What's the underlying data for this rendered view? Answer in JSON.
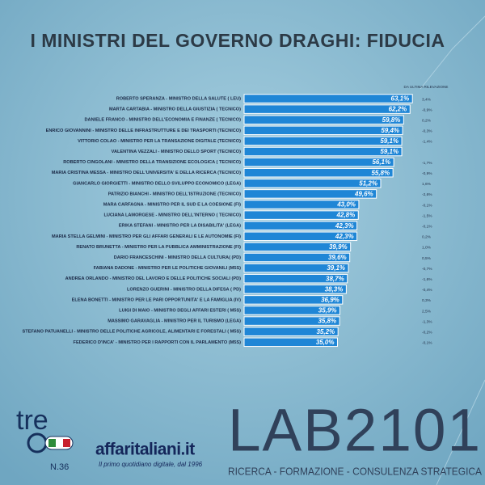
{
  "chart_data": {
    "type": "barh",
    "title": "I MINISTRI DEL GOVERNO DRAGHI: FIDUCIA",
    "change_header": "DA ULTIMA RILEVAZIONE",
    "color": "#1f86d6",
    "categories": [
      "ROBERTO SPERANZA - MINISTRO DELLA SALUTE ( LEU)",
      "MARTA CARTABIA - MINISTRO DELLA GIUSTIZIA ( TECNICO)",
      "DANIELE FRANCO - MINISTRO DELL'ECONOMIA E FINANZE ( TECNICO)",
      "ENRICO GIOVANNINI - MINISTRO DELLE INFRASTRUTTURE E DEI TRASPORTI (TECNICO)",
      "VITTORIO COLAO - MINISTRO PER LA TRANSAZIONE DIGITALE (TECNICO)",
      "VALENTINA VEZZALI - MINISTRO DELLO SPORT (TECNICO)",
      "ROBERTO CINGOLANI - MINISTRO DELLA TRANSIZIONE ECOLOGICA ( TECNICO)",
      "MARIA CRISTINA MESSA - MINISTRO DELL'UNIVERSITA' E DELLA RICERCA (TECNICO)",
      "GIANCARLO GIORGIETTI - MINISTRO DELLO SVILUPPO ECONOMICO (LEGA)",
      "PATRIZIO BIANCHI - MINISTRO DELL'ISTRUZIONE (TECNICO)",
      "MARA CARFAGNA - MINISTRO PER IL SUD E LA COESIONE (FI)",
      "LUCIANA LAMORGESE - MINISTRO DELL'INTERNO ( TECNICO)",
      "ERIKA STEFANI - MINISTRO PER LA DISABILITA' (LEGA)",
      "MARIA STELLA GELMINI - MINISTRO PER GLI AFFARI GENERALI E LE AUTONOMIE (FI)",
      "RENATO BRUNETTA - MINISTRO PER LA PUBBLICA AMMINISTRAZIONE (FI)",
      "DARIO FRANCESCHINI - MINISTRO DELLA CULTURA( (PD)",
      "FABIANA DADONE - MINISTRO PER LE POLITICHE GIOVANILI (M5S)",
      "ANDREA ORLANDO - MINISTRO DEL LAVORO E DELLE POLITICHE SOCIALI (PD)",
      "LORENZO GUERINI - MINISTRO DELLA DIFESA ( PD)",
      "ELENA BONETTI - MINISTRO PER LE PARI OPPORTUNITA' E LA FAMIGLIA (IV)",
      "LUIGI DI MAIO - MINISTRO DEGLI AFFARI ESTERI ( M5S)",
      "MASSIMO GARAVAGLIA - MINISTRO PER IL TURISMO (LEGA)",
      "STEFANO PATUANELLI - MINISTRO DELLE POLITICHE AGRICOLE, ALIMENTARI E FORESTALI ( M5S)",
      "FEDERICO D'INCA' - MINISTRO PER I RAPPORTI CON IL PARLAMENTO (M5S)"
    ],
    "values": [
      63.1,
      62.2,
      59.8,
      59.4,
      59.1,
      59.1,
      56.1,
      55.8,
      51.2,
      49.6,
      43.0,
      42.8,
      42.3,
      42.3,
      39.9,
      39.6,
      39.1,
      38.7,
      38.3,
      36.9,
      35.9,
      35.8,
      35.2,
      35.0
    ],
    "value_labels": [
      "63,1%",
      "62,2%",
      "59,8%",
      "59,4%",
      "59,1%",
      "59,1%",
      "56,1%",
      "55,8%",
      "51,2%",
      "49,6%",
      "43,0%",
      "42,8%",
      "42,3%",
      "42,3%",
      "39,9%",
      "39,6%",
      "39,1%",
      "38,7%",
      "38,3%",
      "36,9%",
      "35,9%",
      "35,8%",
      "35,2%",
      "35,0%"
    ],
    "changes": [
      "3,4%",
      "-0,9%",
      "0,2%",
      "-0,3%",
      "-1,4%",
      null,
      "-1,7%",
      "-0,9%",
      "1,6%",
      "-2,6%",
      "-0,1%",
      "-1,5%",
      "-0,1%",
      "0,2%",
      "1,0%",
      "0,5%",
      "-0,7%",
      "-1,6%",
      "-0,4%",
      "0,3%",
      "2,5%",
      "-1,3%",
      "-0,2%",
      "-0,1%"
    ]
  },
  "footer": {
    "tre": "tre",
    "issue": "N.36",
    "affaritaliani": "affaritaliani.it",
    "slogan": "Il primo quotidiano digitale, dal 1996",
    "lab": "LAB2101",
    "lab_tagline": "RICERCA - FORMAZIONE - CONSULENZA STRATEGICA"
  }
}
